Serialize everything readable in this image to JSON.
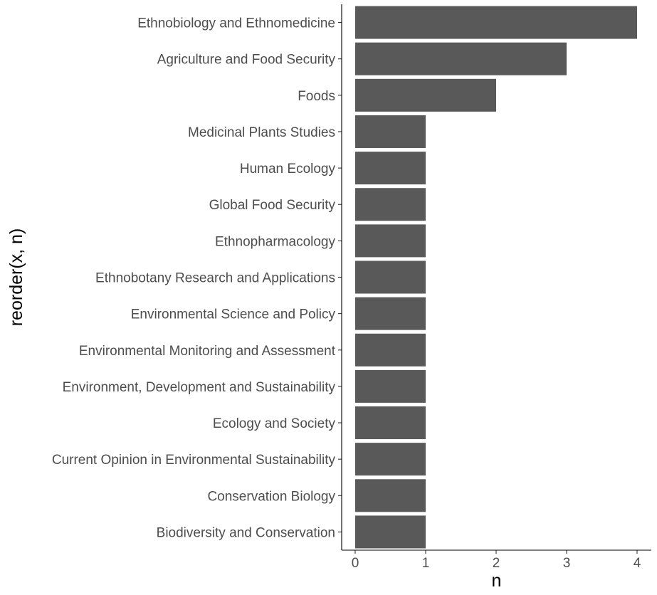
{
  "chart_data": {
    "type": "bar",
    "orientation": "horizontal",
    "xlabel": "n",
    "ylabel": "reorder(x, n)",
    "xlim": [
      0,
      4
    ],
    "x_ticks": [
      "0",
      "1",
      "2",
      "3",
      "4"
    ],
    "grid": false,
    "bar_color": "#595959",
    "categories": [
      "Ethnobiology and Ethnomedicine",
      "Agriculture and Food Security",
      "Foods",
      "Medicinal Plants Studies",
      "Human Ecology",
      "Global Food Security",
      "Ethnopharmacology",
      "Ethnobotany Research and Applications",
      "Environmental Science and Policy",
      "Environmental Monitoring and Assessment",
      "Environment, Development and Sustainability",
      "Ecology and Society",
      "Current Opinion in Environmental Sustainability",
      "Conservation Biology",
      "Biodiversity and Conservation"
    ],
    "values": [
      4,
      3,
      2,
      1,
      1,
      1,
      1,
      1,
      1,
      1,
      1,
      1,
      1,
      1,
      1
    ]
  }
}
